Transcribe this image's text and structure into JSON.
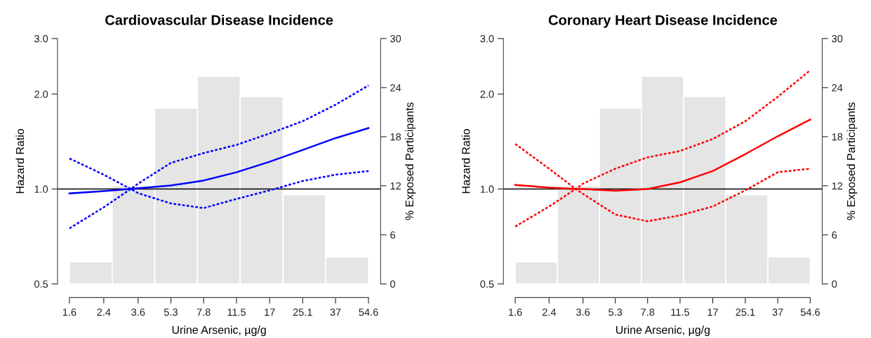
{
  "chart_data": [
    {
      "type": "line",
      "title": "Cardiovascular Disease Incidence",
      "xlabel": "Urine Arsenic, µg/g",
      "ylabel": "Hazard Ratio",
      "y2label": "% Exposed Participants",
      "log": "xy",
      "xlim": [
        1.39,
        63
      ],
      "xticks": [
        1.6,
        2.4,
        3.6,
        5.3,
        7.8,
        11.5,
        17,
        25.1,
        37,
        54.6
      ],
      "ylim": [
        0.5,
        3.0
      ],
      "yticks": [
        {
          "value": 0.5,
          "label": "0.5"
        },
        {
          "value": 1,
          "label": "1.0"
        },
        {
          "value": 2,
          "label": "2.0"
        },
        {
          "value": 3,
          "label": "3.0"
        }
      ],
      "y2lim": [
        0,
        30
      ],
      "y2ticks": [
        0,
        6,
        12,
        18,
        24,
        30
      ],
      "ref_lines": [
        {
          "axis": "y",
          "value": 1.0,
          "color": "#000000"
        }
      ],
      "series": [
        {
          "type": "histogram",
          "axis": "y2",
          "color": "#e5e5e5",
          "bins": [
            1.6,
            2.65,
            4.38,
            7.25,
            12.0,
            19.9,
            32.9,
            54.6
          ],
          "values": [
            2.7,
            12.0,
            21.5,
            25.4,
            22.9,
            10.9,
            3.3
          ]
        },
        {
          "type": "line",
          "line_style": "solid",
          "color": "#0000ff",
          "x": [
            1.6,
            2.4,
            3.3,
            3.6,
            5.3,
            7.8,
            11.5,
            17,
            25.1,
            37,
            54.6
          ],
          "values": [
            0.968,
            0.985,
            1.0,
            1.005,
            1.026,
            1.064,
            1.13,
            1.22,
            1.33,
            1.45,
            1.56
          ]
        },
        {
          "type": "line",
          "line_style": "dotted",
          "color": "#0000ff",
          "x": [
            1.6,
            2.4,
            3.3,
            3.6,
            5.3,
            7.8,
            11.5,
            17,
            25.1,
            37,
            54.6
          ],
          "values": [
            0.75,
            0.875,
            1.0,
            1.04,
            1.21,
            1.3,
            1.38,
            1.5,
            1.64,
            1.85,
            2.13
          ]
        },
        {
          "type": "line",
          "line_style": "dotted",
          "color": "#0000ff",
          "x": [
            1.6,
            2.4,
            3.3,
            3.6,
            5.3,
            7.8,
            11.5,
            17,
            25.1,
            37,
            54.6
          ],
          "values": [
            1.25,
            1.11,
            1.0,
            0.97,
            0.9,
            0.87,
            0.93,
            0.99,
            1.06,
            1.11,
            1.14
          ]
        }
      ]
    },
    {
      "type": "line",
      "title": "Coronary Heart Disease Incidence",
      "xlabel": "Urine Arsenic, µg/g",
      "ylabel": "Hazard Ratio",
      "y2label": "% Exposed Participants",
      "log": "xy",
      "xlim": [
        1.39,
        63
      ],
      "xticks": [
        1.6,
        2.4,
        3.6,
        5.3,
        7.8,
        11.5,
        17,
        25.1,
        37,
        54.6
      ],
      "ylim": [
        0.5,
        3.0
      ],
      "yticks": [
        {
          "value": 0.5,
          "label": "0.5"
        },
        {
          "value": 1,
          "label": "1.0"
        },
        {
          "value": 2,
          "label": "2.0"
        },
        {
          "value": 3,
          "label": "3.0"
        }
      ],
      "y2lim": [
        0,
        30
      ],
      "y2ticks": [
        0,
        6,
        12,
        18,
        24,
        30
      ],
      "ref_lines": [
        {
          "axis": "y",
          "value": 1.0,
          "color": "#000000"
        }
      ],
      "series": [
        {
          "type": "histogram",
          "axis": "y2",
          "color": "#e5e5e5",
          "bins": [
            1.6,
            2.65,
            4.38,
            7.25,
            12.0,
            19.9,
            32.9,
            54.6
          ],
          "values": [
            2.7,
            12.0,
            21.5,
            25.4,
            22.9,
            10.9,
            3.3
          ]
        },
        {
          "type": "line",
          "line_style": "solid",
          "color": "#ff0000",
          "x": [
            1.6,
            2.4,
            3.3,
            3.6,
            5.3,
            7.8,
            11.5,
            17,
            25.1,
            37,
            54.6
          ],
          "values": [
            1.03,
            1.01,
            1.0,
            1.0,
            0.987,
            1.0,
            1.05,
            1.14,
            1.29,
            1.47,
            1.66
          ]
        },
        {
          "type": "line",
          "line_style": "dotted",
          "color": "#ff0000",
          "x": [
            1.6,
            2.4,
            3.3,
            3.6,
            5.3,
            7.8,
            11.5,
            17,
            25.1,
            37,
            54.6
          ],
          "values": [
            0.76,
            0.88,
            1.0,
            1.04,
            1.16,
            1.26,
            1.32,
            1.44,
            1.64,
            1.96,
            2.38
          ]
        },
        {
          "type": "line",
          "line_style": "dotted",
          "color": "#ff0000",
          "x": [
            1.6,
            2.4,
            3.3,
            3.6,
            5.3,
            7.8,
            11.5,
            17,
            25.1,
            37,
            54.6
          ],
          "values": [
            1.39,
            1.16,
            1.0,
            0.965,
            0.83,
            0.79,
            0.825,
            0.88,
            0.99,
            1.13,
            1.16
          ]
        }
      ]
    }
  ]
}
